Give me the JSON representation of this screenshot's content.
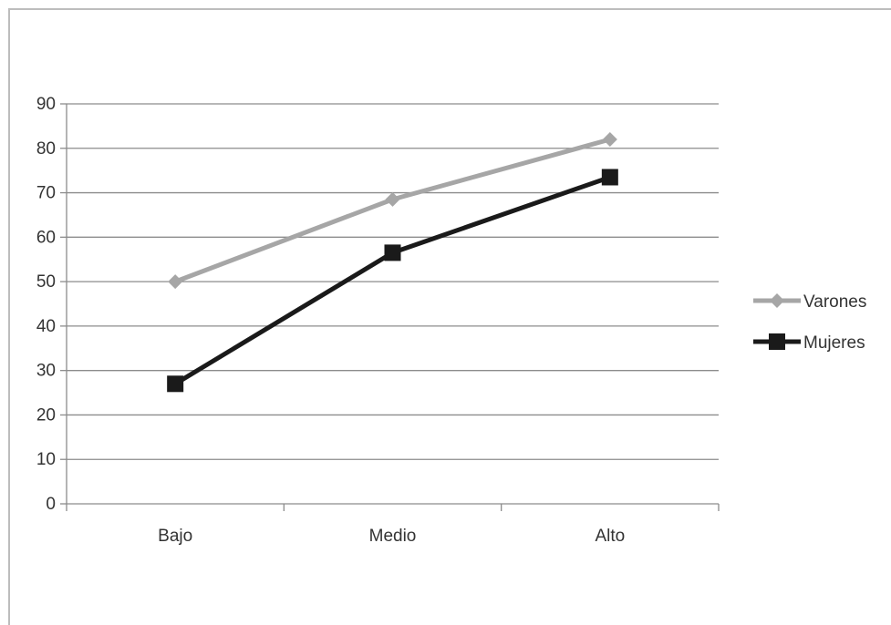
{
  "chart_data": {
    "type": "line",
    "categories": [
      "Bajo",
      "Medio",
      "Alto"
    ],
    "series": [
      {
        "name": "Varones",
        "values": [
          50,
          68.5,
          82
        ],
        "color": "#a6a6a6",
        "marker": "diamond"
      },
      {
        "name": "Mujeres",
        "values": [
          27,
          56.5,
          73.5
        ],
        "color": "#1a1a1a",
        "marker": "square"
      }
    ],
    "ylim": [
      0,
      90
    ],
    "yticks": [
      0,
      10,
      20,
      30,
      40,
      50,
      60,
      70,
      80,
      90
    ],
    "grid": "horizontal",
    "legend": "right",
    "title": "",
    "xlabel": "",
    "ylabel": ""
  }
}
